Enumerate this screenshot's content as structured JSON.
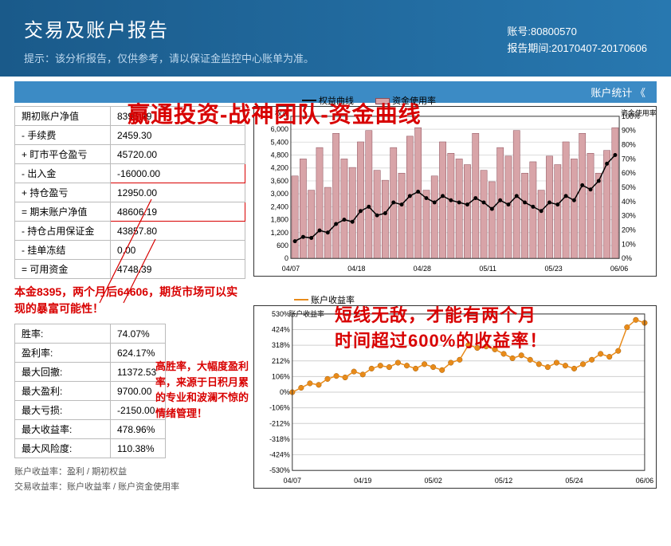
{
  "header": {
    "title": "交易及账户报告",
    "subtitle": "提示：该分析报告，仅供参考，请以保证金监控中心账单为准。",
    "acct_label": "账号:",
    "acct_no": "80800570",
    "period_label": "报告期间:",
    "period": "20170407-20170606"
  },
  "section_bar": "账户统计  《",
  "big_red_title": "赢通投资-战神团队-资金曲线",
  "annot_left1": "本金8395，两个月后64606，期货市场可以实现的暴富可能性！",
  "annot_left2": "高胜率，大幅度盈利率，来源于日积月累的专业和波澜不惊的情绪管理！",
  "annot_right1": "短线无敌，才能有两个月",
  "annot_right2": "时间超过600%的收益率！",
  "table1": {
    "rows": [
      {
        "k": "期初账户净值",
        "v": "8395.49",
        "box": false
      },
      {
        "k": "- 手续费",
        "v": "2459.30",
        "box": false
      },
      {
        "k": "+ 盯市平仓盈亏",
        "v": "45720.00",
        "box": false
      },
      {
        "k": "- 出入金",
        "v": "-16000.00",
        "box": true
      },
      {
        "k": "+ 持仓盈亏",
        "v": "12950.00",
        "box": false
      },
      {
        "k": "= 期末账户净值",
        "v": "48606.19",
        "box": true
      },
      {
        "k": "- 持仓占用保证金",
        "v": "43857.80",
        "box": false
      },
      {
        "k": "- 挂单冻结",
        "v": "0.00",
        "box": false
      },
      {
        "k": "= 可用资金",
        "v": "4748.39",
        "box": false
      }
    ]
  },
  "table2": {
    "rows": [
      {
        "k": "胜率:",
        "v": "74.07%"
      },
      {
        "k": "盈利率:",
        "v": "624.17%"
      },
      {
        "k": "最大回撤:",
        "v": "11372.53"
      },
      {
        "k": "最大盈利:",
        "v": "9700.00"
      },
      {
        "k": "最大亏损:",
        "v": "-2150.00"
      },
      {
        "k": "最大收益率:",
        "v": "478.96%"
      },
      {
        "k": "最大风险度:",
        "v": "110.38%"
      }
    ]
  },
  "footnotes": [
    "账户收益率：盈利 / 期初权益",
    "交易收益率：账户收益率 / 账户资金使用率"
  ],
  "chart1": {
    "type": "bar+line-dualaxis",
    "legend_line": "权益曲线",
    "legend_bar": "资金使用率",
    "ylabel_left": "权益",
    "ylabel_right": "资金使用率",
    "x_ticks": [
      "04/07",
      "04/18",
      "04/28",
      "05/11",
      "05/23",
      "06/06"
    ],
    "y_left": {
      "min": 0,
      "max": 6600,
      "ticks": [
        0,
        600,
        1200,
        1800,
        2400,
        3000,
        3600,
        4200,
        4800,
        5400,
        6000
      ]
    },
    "y_right": {
      "min": 0,
      "max": 100,
      "step": 10,
      "ticks": [
        "0%",
        "10%",
        "20%",
        "30%",
        "40%",
        "50%",
        "60%",
        "70%",
        "80%",
        "90%",
        "100%"
      ]
    },
    "bar_color": "#d8a4a8",
    "bar_border": "#8a4c58",
    "line_color": "#000000",
    "grid_color": "#dcdcdc",
    "background_color": "#ffffff",
    "bars_pct": [
      58,
      70,
      48,
      78,
      50,
      88,
      70,
      64,
      82,
      90,
      62,
      55,
      78,
      60,
      86,
      92,
      48,
      58,
      82,
      74,
      70,
      66,
      88,
      62,
      54,
      78,
      72,
      90,
      60,
      68,
      48,
      72,
      66,
      82,
      70,
      88,
      74,
      60,
      76,
      92
    ],
    "equity": [
      800,
      1000,
      950,
      1300,
      1200,
      1600,
      1800,
      1700,
      2200,
      2400,
      2000,
      2100,
      2600,
      2500,
      2900,
      3100,
      2800,
      2600,
      2900,
      2700,
      2600,
      2500,
      2800,
      2600,
      2300,
      2700,
      2500,
      2900,
      2600,
      2400,
      2200,
      2600,
      2500,
      2900,
      2700,
      3400,
      3200,
      3600,
      4400,
      4800
    ]
  },
  "chart2": {
    "type": "line",
    "legend": "账户收益率",
    "ylabel": "账户收益率",
    "x_ticks": [
      "04/07",
      "04/19",
      "05/02",
      "05/12",
      "05/24",
      "06/06"
    ],
    "y": {
      "min": -530,
      "max": 530,
      "ticks": [
        "-530%",
        "-424%",
        "-318%",
        "-212%",
        "-106%",
        "0%",
        "106%",
        "212%",
        "318%",
        "424%",
        "530%"
      ]
    },
    "line_color": "#e88b1a",
    "marker_color": "#e88b1a",
    "marker_size": 4,
    "grid_color": "#cfcfcf",
    "background_color": "#ffffff",
    "values": [
      0,
      30,
      60,
      50,
      90,
      110,
      100,
      140,
      120,
      160,
      180,
      170,
      200,
      180,
      160,
      190,
      170,
      150,
      200,
      220,
      320,
      300,
      310,
      290,
      260,
      230,
      250,
      220,
      190,
      170,
      200,
      180,
      160,
      190,
      220,
      260,
      240,
      280,
      440,
      490,
      470
    ]
  }
}
